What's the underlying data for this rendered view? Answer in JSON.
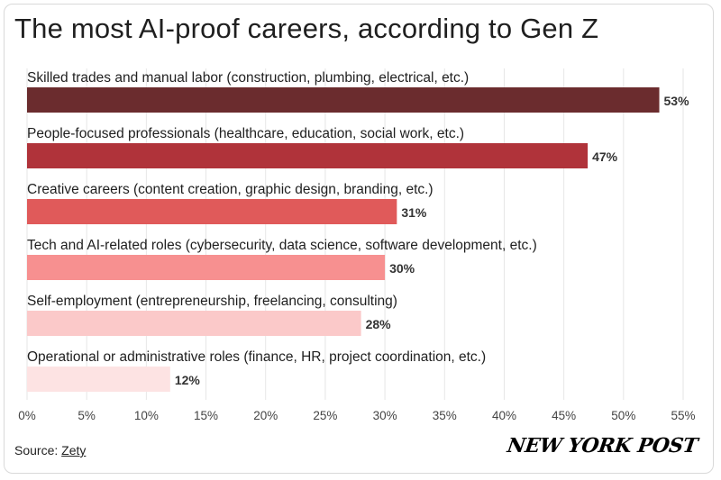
{
  "chart_data": {
    "type": "bar",
    "orientation": "horizontal",
    "title": "The most AI-proof careers, according to Gen Z",
    "categories": [
      "Skilled trades and manual labor (construction, plumbing, electrical, etc.)",
      "People-focused professionals (healthcare, education, social work, etc.)",
      "Creative careers (content creation, graphic design, branding, etc.)",
      "Tech and AI-related roles (cybersecurity, data science, software development, etc.)",
      "Self-employment (entrepreneurship, freelancing, consulting)",
      "Operational or administrative roles (finance, HR, project coordination, etc.)"
    ],
    "values": [
      53,
      47,
      31,
      30,
      28,
      12
    ],
    "value_labels": [
      "53%",
      "47%",
      "31%",
      "30%",
      "28%",
      "12%"
    ],
    "bar_colors": [
      "#6b2c2e",
      "#b0333a",
      "#e05a5a",
      "#f79090",
      "#fbc9c9",
      "#fde3e3"
    ],
    "xlim": [
      0,
      55
    ],
    "xticks": [
      0,
      5,
      10,
      15,
      20,
      25,
      30,
      35,
      40,
      45,
      50,
      55
    ],
    "xtick_labels": [
      "0%",
      "5%",
      "10%",
      "15%",
      "20%",
      "25%",
      "30%",
      "35%",
      "40%",
      "45%",
      "50%",
      "55%"
    ],
    "grid": true,
    "xlabel": "",
    "ylabel": ""
  },
  "footer": {
    "source_prefix": "Source: ",
    "source_link": "Zety",
    "logo_text": "NEW YORK POST"
  }
}
